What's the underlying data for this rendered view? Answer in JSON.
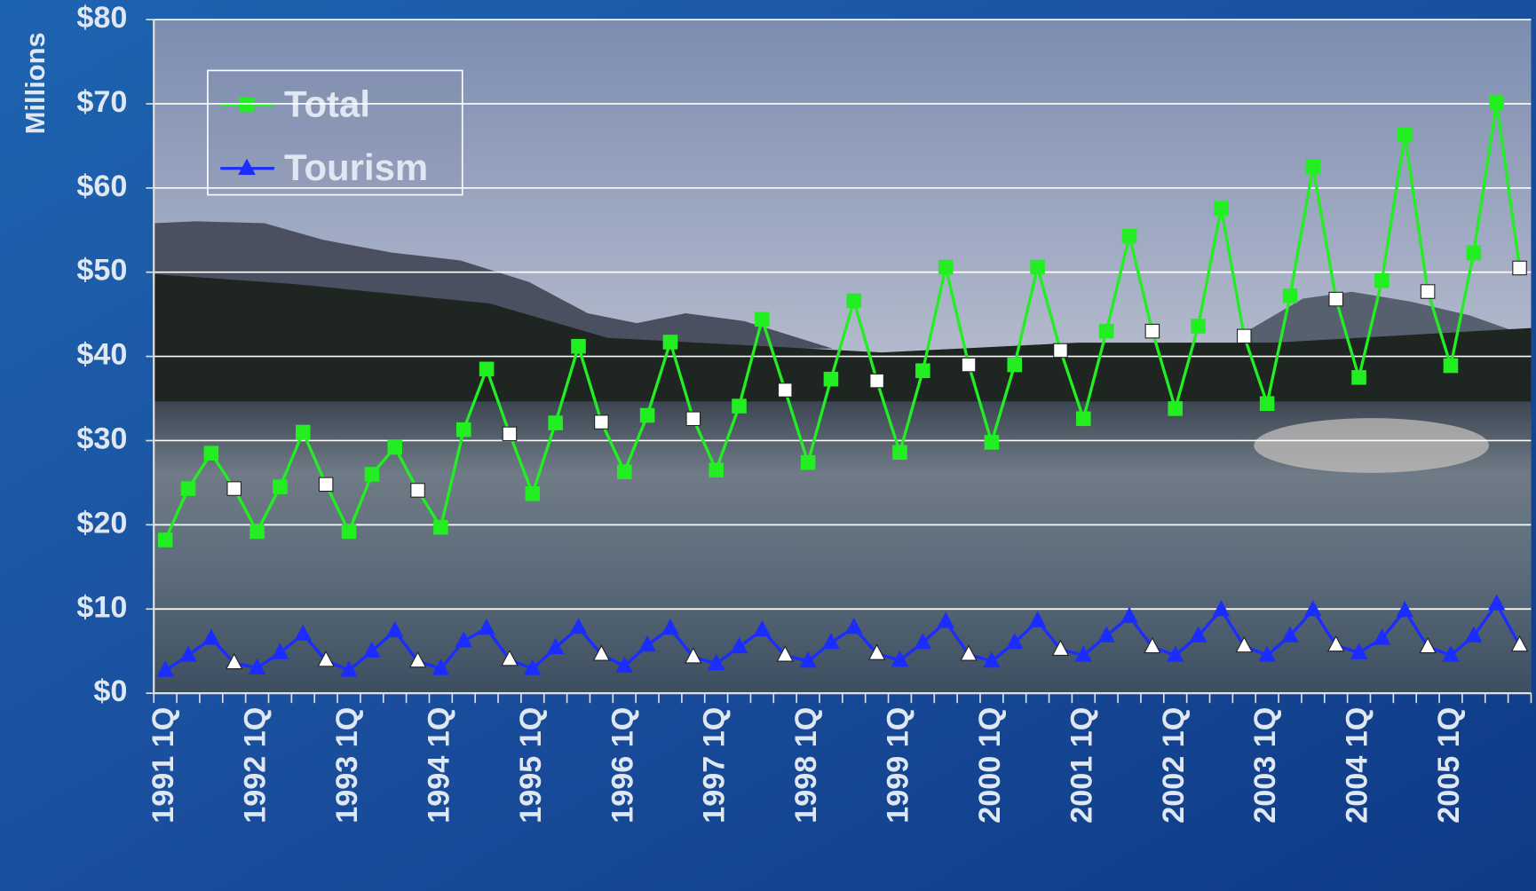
{
  "chart_data": {
    "type": "line",
    "y_label": "Millions",
    "categories": [
      "1991 1Q",
      null,
      null,
      null,
      "1992 1Q",
      null,
      null,
      null,
      "1993 1Q",
      null,
      null,
      null,
      "1994 1Q",
      null,
      null,
      null,
      "1995 1Q",
      null,
      null,
      null,
      "1996 1Q",
      null,
      null,
      null,
      "1997 1Q",
      null,
      null,
      null,
      "1998 1Q",
      null,
      null,
      null,
      "1999 1Q",
      null,
      null,
      null,
      "2000 1Q",
      null,
      null,
      null,
      "2001 1Q",
      null,
      null,
      null,
      "2002 1Q",
      null,
      null,
      null,
      "2003 1Q",
      null,
      null,
      null,
      "2004 1Q",
      null,
      null,
      null,
      "2005 1Q",
      null,
      null,
      null
    ],
    "series": [
      {
        "name": "Total",
        "color": "#22ee22",
        "marker": "square",
        "values": [
          18.2,
          24.3,
          28.5,
          24.3,
          19.2,
          24.5,
          31,
          24.8,
          19.2,
          26,
          29.2,
          24.1,
          19.7,
          31.3,
          38.5,
          30.8,
          23.7,
          32.1,
          41.2,
          32.2,
          26.3,
          33,
          41.7,
          32.6,
          26.5,
          34.1,
          44.4,
          36,
          27.4,
          37.3,
          46.6,
          37.1,
          28.6,
          38.3,
          50.6,
          39,
          29.8,
          39,
          50.6,
          40.7,
          32.6,
          43,
          54.3,
          43,
          33.8,
          43.6,
          57.6,
          42.4,
          34.4,
          47.2,
          62.5,
          46.8,
          37.5,
          49,
          66.3,
          47.7,
          38.9,
          52.3,
          70.2,
          50.5
        ]
      },
      {
        "name": "Tourism",
        "color": "#1a2cff",
        "marker": "triangle",
        "values": [
          2.7,
          4.5,
          6.5,
          3.6,
          3,
          4.8,
          7,
          3.9,
          2.7,
          5,
          7.4,
          3.8,
          2.9,
          6.2,
          7.7,
          4,
          2.9,
          5.4,
          7.8,
          4.6,
          3.2,
          5.7,
          7.7,
          4.3,
          3.5,
          5.5,
          7.5,
          4.5,
          3.8,
          6,
          7.8,
          4.7,
          3.9,
          6,
          8.5,
          4.6,
          3.8,
          6,
          8.6,
          5.2,
          4.5,
          6.8,
          9.1,
          5.5,
          4.5,
          6.8,
          9.9,
          5.6,
          4.5,
          6.8,
          9.9,
          5.7,
          4.8,
          6.5,
          9.8,
          5.5,
          4.5,
          6.8,
          10.6,
          5.7
        ]
      }
    ],
    "ylim": [
      0,
      80
    ],
    "yticks": [
      {
        "value": 0,
        "label": "$0"
      },
      {
        "value": 10,
        "label": "$10"
      },
      {
        "value": 20,
        "label": "$20"
      },
      {
        "value": 30,
        "label": "$30"
      },
      {
        "value": 40,
        "label": "$40"
      },
      {
        "value": 50,
        "label": "$50"
      },
      {
        "value": 60,
        "label": "$60"
      },
      {
        "value": 70,
        "label": "$70"
      },
      {
        "value": 80,
        "label": "$80"
      }
    ],
    "grid": true,
    "legend": "upper left"
  }
}
